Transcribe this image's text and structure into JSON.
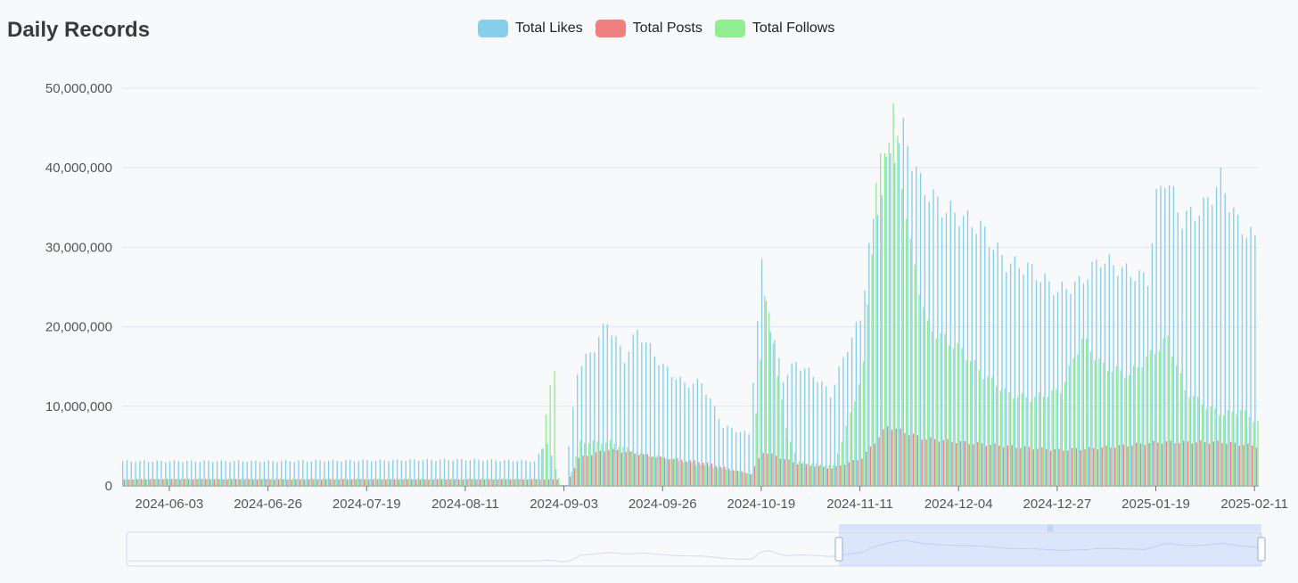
{
  "chart_data": {
    "type": "bar",
    "title": "Daily Records",
    "xlabel": "",
    "ylabel": "",
    "ylim": [
      0,
      50000000
    ],
    "yticks": [
      "0",
      "10,000,000",
      "20,000,000",
      "30,000,000",
      "40,000,000",
      "50,000,000"
    ],
    "ytick_values": [
      0,
      10000000,
      20000000,
      30000000,
      40000000,
      50000000
    ],
    "xticks": [
      "2024-06-03",
      "2024-06-26",
      "2024-07-19",
      "2024-08-11",
      "2024-09-03",
      "2024-09-26",
      "2024-10-19",
      "2024-11-11",
      "2024-12-04",
      "2024-12-27",
      "2025-01-19",
      "2025-02-11"
    ],
    "x_start": "2024-05-23",
    "x_end": "2025-02-11",
    "grid": true,
    "legend_position": "top-center",
    "colors": {
      "likes": "#87ceeb",
      "posts": "#f08080",
      "follows": "#90ee90"
    },
    "series": [
      {
        "name": "Total Likes",
        "key": "likes",
        "anchors": [
          [
            "2024-05-23",
            3100000
          ],
          [
            "2024-06-03",
            3100000
          ],
          [
            "2024-06-26",
            3100000
          ],
          [
            "2024-07-19",
            3200000
          ],
          [
            "2024-08-11",
            3300000
          ],
          [
            "2024-08-27",
            3100000
          ],
          [
            "2024-08-30",
            5500000
          ],
          [
            "2024-09-01",
            2000000
          ],
          [
            "2024-09-03",
            0
          ],
          [
            "2024-09-06",
            14500000
          ],
          [
            "2024-09-10",
            17500000
          ],
          [
            "2024-09-13",
            20700000
          ],
          [
            "2024-09-17",
            16000000
          ],
          [
            "2024-09-20",
            19500000
          ],
          [
            "2024-09-26",
            15000000
          ],
          [
            "2024-10-01",
            12800000
          ],
          [
            "2024-10-05",
            13000000
          ],
          [
            "2024-10-10",
            7500000
          ],
          [
            "2024-10-16",
            6500000
          ],
          [
            "2024-10-19",
            27500000
          ],
          [
            "2024-10-21",
            20000000
          ],
          [
            "2024-10-24",
            13500000
          ],
          [
            "2024-10-27",
            15500000
          ],
          [
            "2024-11-01",
            13500000
          ],
          [
            "2024-11-04",
            11500000
          ],
          [
            "2024-11-08",
            17500000
          ],
          [
            "2024-11-11",
            21000000
          ],
          [
            "2024-11-13",
            30000000
          ],
          [
            "2024-11-17",
            40000000
          ],
          [
            "2024-11-21",
            44500000
          ],
          [
            "2024-11-25",
            38000000
          ],
          [
            "2024-11-30",
            35000000
          ],
          [
            "2024-12-04",
            34000000
          ],
          [
            "2024-12-09",
            32500000
          ],
          [
            "2024-12-15",
            28000000
          ],
          [
            "2024-12-20",
            27500000
          ],
          [
            "2024-12-27",
            24500000
          ],
          [
            "2025-01-01",
            25500000
          ],
          [
            "2025-01-06",
            28500000
          ],
          [
            "2025-01-12",
            27000000
          ],
          [
            "2025-01-17",
            26000000
          ],
          [
            "2025-01-19",
            36000000
          ],
          [
            "2025-01-21",
            39000000
          ],
          [
            "2025-01-25",
            33500000
          ],
          [
            "2025-01-30",
            35000000
          ],
          [
            "2025-02-03",
            38500000
          ],
          [
            "2025-02-07",
            33000000
          ],
          [
            "2025-02-11",
            31000000
          ]
        ]
      },
      {
        "name": "Total Posts",
        "key": "posts",
        "anchors": [
          [
            "2024-05-23",
            800000
          ],
          [
            "2024-06-03",
            850000
          ],
          [
            "2024-06-26",
            800000
          ],
          [
            "2024-07-19",
            800000
          ],
          [
            "2024-08-11",
            800000
          ],
          [
            "2024-08-27",
            800000
          ],
          [
            "2024-09-01",
            800000
          ],
          [
            "2024-09-03",
            0
          ],
          [
            "2024-09-06",
            3500000
          ],
          [
            "2024-09-13",
            4600000
          ],
          [
            "2024-09-20",
            4000000
          ],
          [
            "2024-09-26",
            3500000
          ],
          [
            "2024-10-05",
            3000000
          ],
          [
            "2024-10-16",
            1500000
          ],
          [
            "2024-10-19",
            4300000
          ],
          [
            "2024-10-27",
            2800000
          ],
          [
            "2024-11-04",
            2200000
          ],
          [
            "2024-11-11",
            3500000
          ],
          [
            "2024-11-17",
            7500000
          ],
          [
            "2024-11-25",
            6000000
          ],
          [
            "2024-12-04",
            5500000
          ],
          [
            "2024-12-15",
            5000000
          ],
          [
            "2024-12-27",
            4500000
          ],
          [
            "2025-01-06",
            4800000
          ],
          [
            "2025-01-19",
            5500000
          ],
          [
            "2025-02-03",
            5500000
          ],
          [
            "2025-02-11",
            5000000
          ]
        ]
      },
      {
        "name": "Total Follows",
        "key": "follows",
        "anchors": [
          [
            "2024-05-23",
            800000
          ],
          [
            "2024-06-03",
            900000
          ],
          [
            "2024-06-26",
            900000
          ],
          [
            "2024-07-19",
            900000
          ],
          [
            "2024-08-11",
            900000
          ],
          [
            "2024-08-27",
            900000
          ],
          [
            "2024-08-30",
            12500000
          ],
          [
            "2024-08-31",
            15000000
          ],
          [
            "2024-09-01",
            1000000
          ],
          [
            "2024-09-03",
            0
          ],
          [
            "2024-09-06",
            5500000
          ],
          [
            "2024-09-13",
            5500000
          ],
          [
            "2024-09-20",
            4000000
          ],
          [
            "2024-09-26",
            3500000
          ],
          [
            "2024-10-05",
            2500000
          ],
          [
            "2024-10-16",
            1500000
          ],
          [
            "2024-10-19",
            24000000
          ],
          [
            "2024-10-21",
            18000000
          ],
          [
            "2024-10-24",
            7000000
          ],
          [
            "2024-10-27",
            3000000
          ],
          [
            "2024-11-04",
            2500000
          ],
          [
            "2024-11-08",
            9000000
          ],
          [
            "2024-11-11",
            15000000
          ],
          [
            "2024-11-14",
            38000000
          ],
          [
            "2024-11-18",
            47000000
          ],
          [
            "2024-11-22",
            30000000
          ],
          [
            "2024-11-26",
            20000000
          ],
          [
            "2024-12-04",
            17000000
          ],
          [
            "2024-12-09",
            14000000
          ],
          [
            "2024-12-15",
            11500000
          ],
          [
            "2024-12-20",
            11000000
          ],
          [
            "2024-12-27",
            12000000
          ],
          [
            "2025-01-01",
            18500000
          ],
          [
            "2025-01-06",
            15000000
          ],
          [
            "2025-01-12",
            14000000
          ],
          [
            "2025-01-17",
            16500000
          ],
          [
            "2025-01-21",
            18500000
          ],
          [
            "2025-01-25",
            12000000
          ],
          [
            "2025-01-30",
            10000000
          ],
          [
            "2025-02-03",
            9000000
          ],
          [
            "2025-02-07",
            9500000
          ],
          [
            "2025-02-11",
            8000000
          ]
        ]
      }
    ]
  }
}
